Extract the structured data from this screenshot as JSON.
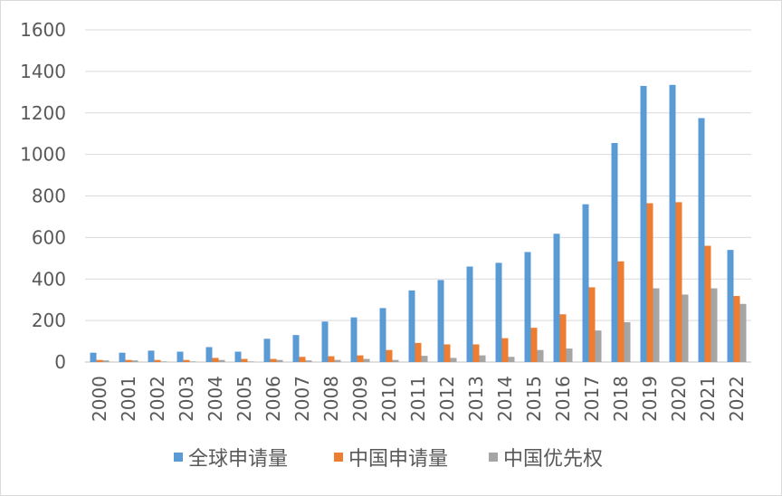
{
  "chart_data": {
    "type": "bar",
    "categories": [
      "2000",
      "2001",
      "2002",
      "2003",
      "2004",
      "2005",
      "2006",
      "2007",
      "2008",
      "2009",
      "2010",
      "2011",
      "2012",
      "2013",
      "2014",
      "2015",
      "2016",
      "2017",
      "2018",
      "2019",
      "2020",
      "2021",
      "2022"
    ],
    "series": [
      {
        "name": "全球申请量",
        "color": "#5b9bd5",
        "values": [
          45,
          45,
          55,
          50,
          72,
          50,
          112,
          130,
          195,
          215,
          260,
          345,
          395,
          460,
          478,
          530,
          618,
          760,
          1055,
          1330,
          1335,
          1175,
          540
        ]
      },
      {
        "name": "中国申请量",
        "color": "#ed7d31",
        "values": [
          10,
          10,
          10,
          10,
          20,
          15,
          15,
          25,
          28,
          32,
          58,
          92,
          85,
          85,
          115,
          165,
          230,
          360,
          485,
          765,
          770,
          560,
          318
        ]
      },
      {
        "name": "中国优先权",
        "color": "#a5a5a5",
        "values": [
          8,
          8,
          3,
          3,
          10,
          3,
          10,
          8,
          10,
          15,
          10,
          30,
          20,
          32,
          25,
          58,
          65,
          152,
          192,
          355,
          325,
          355,
          280
        ]
      }
    ],
    "yticks": [
      0,
      200,
      400,
      600,
      800,
      1000,
      1200,
      1400,
      1600
    ],
    "ylim": [
      0,
      1600
    ],
    "grid": true,
    "legend": "bottom",
    "title": "",
    "xlabel": "",
    "ylabel": ""
  }
}
